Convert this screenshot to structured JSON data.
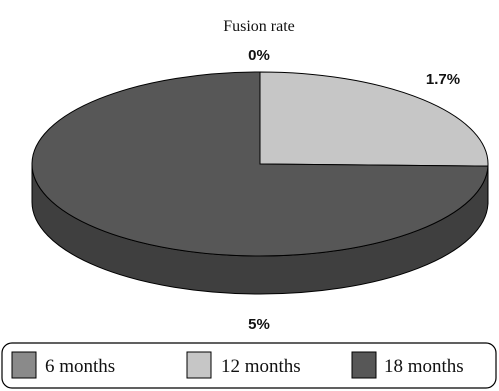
{
  "chart_data": {
    "type": "pie",
    "title": "Fusion rate",
    "slices": [
      {
        "label": "6 months",
        "value": 0,
        "display": "0%",
        "color": "#8a8a8a"
      },
      {
        "label": "12 months",
        "value": 1.7,
        "display": "1.7%",
        "color": "#c6c6c6"
      },
      {
        "label": "18 months",
        "value": 5,
        "display": "5%",
        "color": "#575757"
      }
    ],
    "legend_position": "bottom",
    "style": "3d"
  }
}
